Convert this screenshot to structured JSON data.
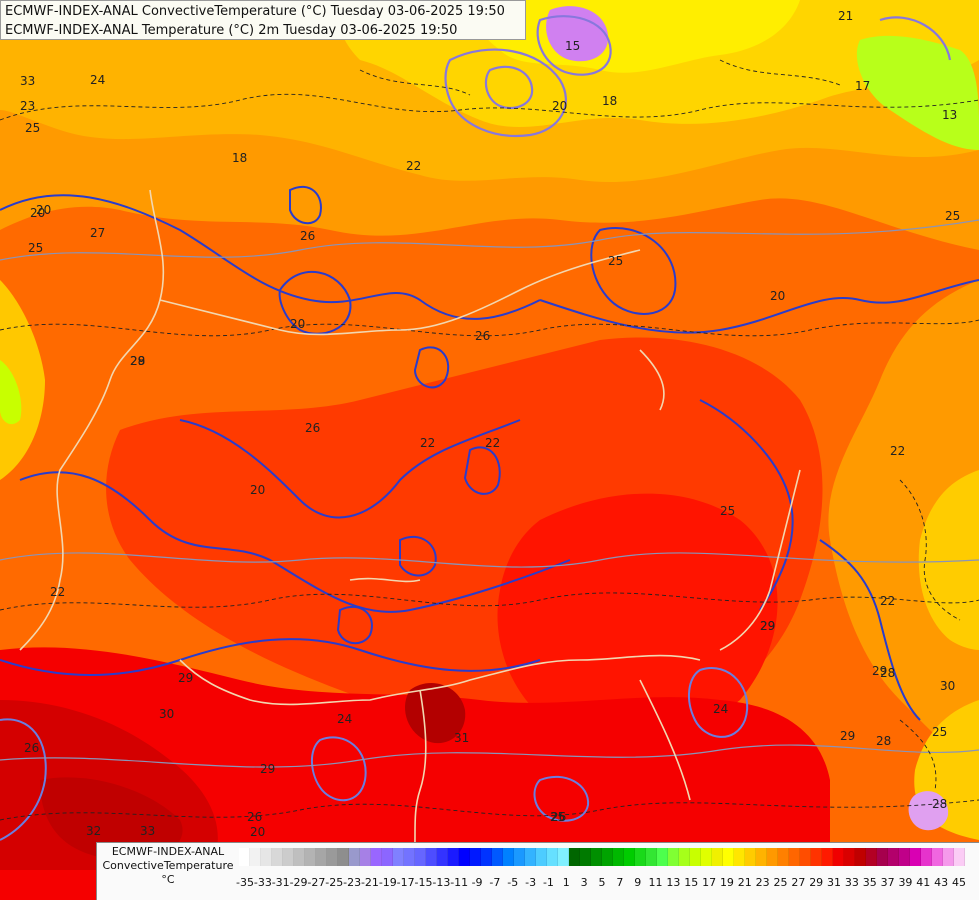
{
  "title": {
    "line1": "ECMWF-INDEX-ANAL ConvectiveTemperature (°C) Tuesday 03-06-2025 19:50",
    "line2": "ECMWF-INDEX-ANAL Temperature (°C) 2m Tuesday 03-06-2025 19:50"
  },
  "legend": {
    "model": "ECMWF-INDEX-ANAL",
    "variable": "ConvectiveTemperature",
    "unit": "°C",
    "tick_labels": [
      "-35",
      "-33",
      "-31",
      "-29",
      "-27",
      "-25",
      "-23",
      "-21",
      "-19",
      "-17",
      "-15",
      "-13",
      "-11",
      "-9",
      "-7",
      "-5",
      "-3",
      "-1",
      "1",
      "3",
      "5",
      "7",
      "9",
      "11",
      "13",
      "15",
      "17",
      "19",
      "21",
      "23",
      "25",
      "27",
      "29",
      "31",
      "33",
      "35",
      "37",
      "39",
      "41",
      "43",
      "45"
    ],
    "colors": [
      "#ffffff",
      "#f2f2f2",
      "#e6e6e6",
      "#d8d8d8",
      "#cccccc",
      "#bfbfbf",
      "#b3b3b3",
      "#a6a6a6",
      "#9a9a9a",
      "#8e8e8e",
      "#9999cc",
      "#a680e6",
      "#9966ff",
      "#8c66ff",
      "#8080ff",
      "#7373ff",
      "#6666ff",
      "#4d4dff",
      "#3333ff",
      "#1a1aff",
      "#0000ff",
      "#0019ff",
      "#0033ff",
      "#0059ff",
      "#0080ff",
      "#1a99ff",
      "#33b3ff",
      "#4dccff",
      "#66e0ff",
      "#80f0ff",
      "#006600",
      "#007a00",
      "#008f00",
      "#00a300",
      "#00b800",
      "#00cc00",
      "#1ad91a",
      "#33e633",
      "#4dff4d",
      "#80ff33",
      "#a6ff1a",
      "#c8ff00",
      "#e0ff00",
      "#f0f000",
      "#ffff00",
      "#ffe600",
      "#ffcc00",
      "#ffb300",
      "#ff9900",
      "#ff8000",
      "#ff6600",
      "#ff4d00",
      "#ff3300",
      "#ff1a00",
      "#f00000",
      "#d90000",
      "#c00000",
      "#b30024",
      "#a6004d",
      "#b3006b",
      "#c00089",
      "#d900b3",
      "#e633cc",
      "#f066e0",
      "#f599eb",
      "#fbccf5"
    ]
  },
  "map": {
    "temperature_labels": [
      "33",
      "24",
      "23",
      "25",
      "26",
      "18",
      "20",
      "22",
      "21",
      "17",
      "13",
      "15",
      "18",
      "20",
      "25",
      "27",
      "20",
      "26",
      "29",
      "28",
      "25",
      "26",
      "20",
      "20",
      "22",
      "22",
      "25",
      "20",
      "22",
      "25",
      "22",
      "29",
      "22",
      "29",
      "28",
      "20",
      "26",
      "25",
      "29",
      "29",
      "30",
      "24",
      "31",
      "29",
      "28",
      "33",
      "24",
      "26",
      "25",
      "28",
      "30",
      "26",
      "29",
      "32"
    ]
  }
}
